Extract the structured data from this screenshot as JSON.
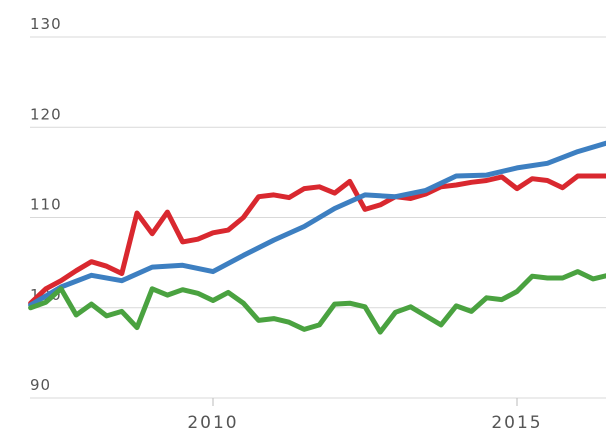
{
  "chart_data": {
    "type": "line",
    "title": "",
    "xlabel": "",
    "ylabel": "",
    "ylim": [
      90,
      130
    ],
    "xlim": [
      2007.0,
      2016.67
    ],
    "y_ticks": [
      90,
      100,
      110,
      120,
      130
    ],
    "x_ticks": [
      2010,
      2015
    ],
    "y_tick_labels": [
      "90",
      "100",
      "110",
      "120",
      "130"
    ],
    "x_tick_labels": [
      "2010",
      "2015"
    ],
    "grid": true,
    "legend": "none",
    "series": [
      {
        "color": "#d9282f",
        "x": [
          2007.0,
          2007.25,
          2007.5,
          2007.75,
          2008.0,
          2008.25,
          2008.5,
          2008.75,
          2009.0,
          2009.25,
          2009.5,
          2009.75,
          2010.0,
          2010.25,
          2010.5,
          2010.75,
          2011.0,
          2011.25,
          2011.5,
          2011.75,
          2012.0,
          2012.25,
          2012.5,
          2012.75,
          2013.0,
          2013.25,
          2013.5,
          2013.75,
          2014.0,
          2014.25,
          2014.5,
          2014.75,
          2015.0,
          2015.25,
          2015.5,
          2015.75,
          2016.0,
          2016.25,
          2016.5,
          2016.67
        ],
        "y": [
          100.5,
          102.1,
          103.0,
          104.1,
          105.1,
          104.6,
          103.8,
          110.5,
          108.2,
          110.6,
          107.3,
          107.6,
          108.3,
          108.6,
          110.0,
          112.3,
          112.5,
          112.2,
          113.2,
          113.4,
          112.7,
          114.0,
          110.9,
          111.4,
          112.3,
          112.1,
          112.6,
          113.4,
          113.6,
          113.9,
          114.1,
          114.5,
          113.2,
          114.3,
          114.1,
          113.3,
          114.6,
          114.6,
          114.6,
          114.6
        ]
      },
      {
        "color": "#3d7fc1",
        "x": [
          2007.0,
          2007.5,
          2008.0,
          2008.5,
          2009.0,
          2009.5,
          2010.0,
          2010.5,
          2011.0,
          2011.5,
          2012.0,
          2012.5,
          2013.0,
          2013.5,
          2014.0,
          2014.5,
          2015.0,
          2015.5,
          2016.0,
          2016.5,
          2016.67
        ],
        "y": [
          100.3,
          102.3,
          103.6,
          103.0,
          104.5,
          104.7,
          104.0,
          105.8,
          107.5,
          109.0,
          111.0,
          112.5,
          112.3,
          113.0,
          114.6,
          114.7,
          115.5,
          116.0,
          117.3,
          118.3,
          118.6
        ]
      },
      {
        "color": "#4aa240",
        "x": [
          2007.0,
          2007.25,
          2007.5,
          2007.75,
          2008.0,
          2008.25,
          2008.5,
          2008.75,
          2009.0,
          2009.25,
          2009.5,
          2009.75,
          2010.0,
          2010.25,
          2010.5,
          2010.75,
          2011.0,
          2011.25,
          2011.5,
          2011.75,
          2012.0,
          2012.25,
          2012.5,
          2012.75,
          2013.0,
          2013.25,
          2013.5,
          2013.75,
          2014.0,
          2014.25,
          2014.5,
          2014.75,
          2015.0,
          2015.25,
          2015.5,
          2015.75,
          2016.0,
          2016.25,
          2016.5,
          2016.67
        ],
        "y": [
          100.0,
          100.6,
          102.1,
          99.2,
          100.4,
          99.1,
          99.6,
          97.8,
          102.1,
          101.4,
          102.0,
          101.6,
          100.8,
          101.7,
          100.5,
          98.6,
          98.8,
          98.4,
          97.6,
          98.1,
          100.4,
          100.5,
          100.1,
          97.3,
          99.5,
          100.1,
          99.1,
          98.1,
          100.2,
          99.6,
          101.1,
          100.9,
          101.8,
          103.5,
          103.3,
          103.3,
          104.0,
          103.2,
          103.6,
          103.6
        ]
      }
    ]
  }
}
